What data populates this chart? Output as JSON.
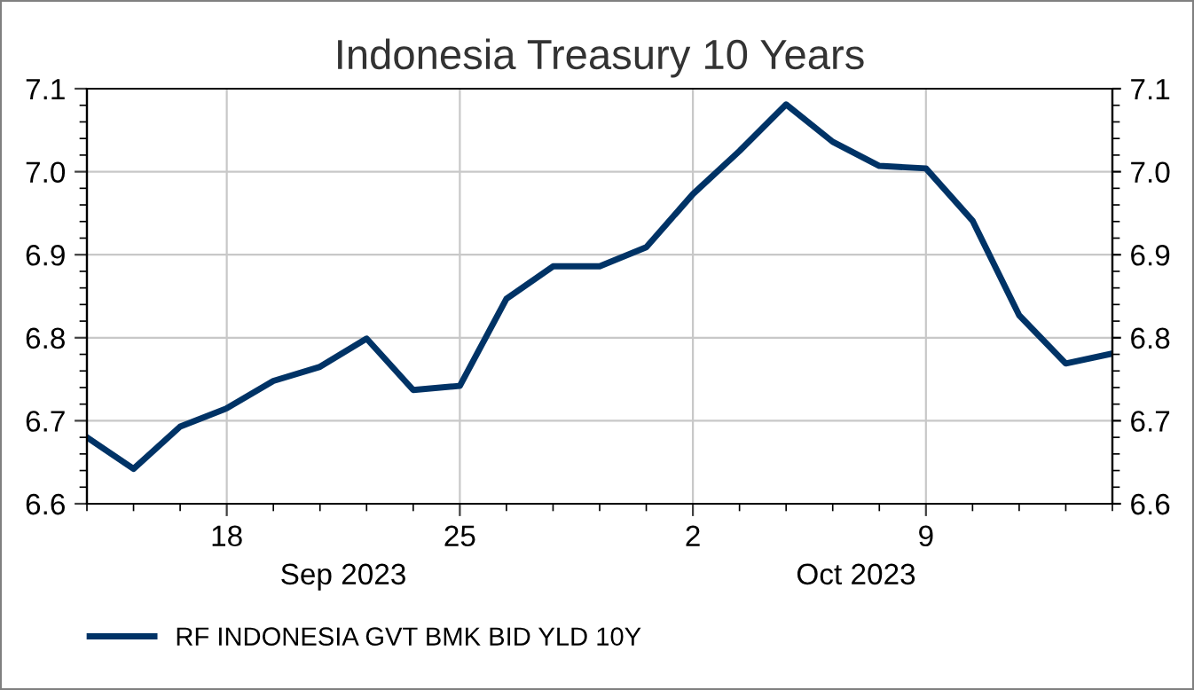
{
  "chart_data": {
    "type": "line",
    "title": "Indonesia Treasury 10 Years",
    "categories": [
      null,
      null,
      null,
      "18",
      null,
      null,
      null,
      null,
      "25",
      null,
      null,
      null,
      null,
      "2",
      null,
      null,
      null,
      null,
      "9",
      null,
      null,
      null,
      null
    ],
    "series": [
      {
        "name": "RF INDONESIA GVT BMK BID YLD 10Y",
        "color": "#003366",
        "values": [
          6.68,
          6.642,
          6.693,
          6.715,
          6.748,
          6.765,
          6.799,
          6.737,
          6.742,
          6.847,
          6.886,
          6.886,
          6.909,
          6.973,
          7.025,
          7.081,
          7.036,
          7.007,
          7.004,
          6.941,
          6.827,
          6.769,
          6.781
        ]
      }
    ],
    "ylim": [
      6.6,
      7.1
    ],
    "yticks": [
      {
        "value": 6.6,
        "label": "6.6"
      },
      {
        "value": 6.7,
        "label": "6.7"
      },
      {
        "value": 6.8,
        "label": "6.8"
      },
      {
        "value": 6.9,
        "label": "6.9"
      },
      {
        "value": 7.0,
        "label": "7.0"
      },
      {
        "value": 7.1,
        "label": "7.1"
      }
    ],
    "y2lim": [
      6.6,
      7.1
    ],
    "y2ticks": [
      {
        "value": 6.6,
        "label": "6.6"
      },
      {
        "value": 6.7,
        "label": "6.7"
      },
      {
        "value": 6.8,
        "label": "6.8"
      },
      {
        "value": 6.9,
        "label": "6.9"
      },
      {
        "value": 7.0,
        "label": "7.0"
      },
      {
        "value": 7.1,
        "label": "7.1"
      }
    ],
    "annotations": [
      "Sep 2023",
      "Oct 2023"
    ],
    "grid": true,
    "legend": "bottom left",
    "marker": "none",
    "line_style": "solid"
  }
}
